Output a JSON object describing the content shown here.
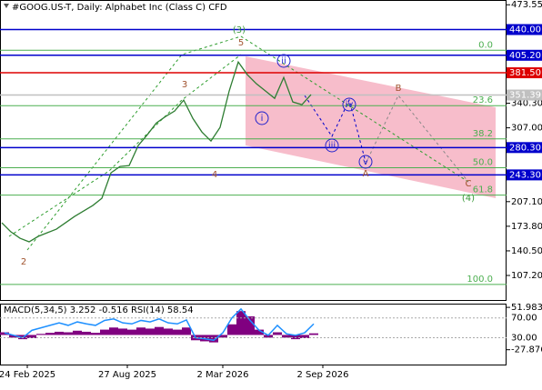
{
  "chart_data": {
    "type": "line",
    "title": "#GOOG.US-T, Daily:  Alphabet Inc (Class C) CFD",
    "x_labels": [
      "24 Feb 2025",
      "27 Aug 2025",
      "2 Mar 2026",
      "2 Sep 2026"
    ],
    "series": [
      {
        "name": "GOOG.US-T",
        "color": "#2e7d32",
        "values": [
          178.5,
          166.2,
          157.6,
          152.7,
          160.1,
          165,
          169.9,
          178.5,
          187.1,
          194.5,
          201.9,
          211.7,
          246.1,
          254.7,
          255.9,
          283,
          297.7,
          313.7,
          322.3,
          329.7,
          344.5,
          319.9,
          301.4,
          289.1,
          307.6,
          356.8,
          396.1,
          378.9,
          366.6,
          356.8,
          346.9,
          375.2,
          342,
          338.3,
          351.9
        ]
      }
    ],
    "ylim": [
      74,
      480
    ],
    "yticks": [
      473.55,
      {
        "value": 340.3,
        "label": "340.30"
      },
      {
        "value": 307,
        "label": "307.00"
      },
      {
        "value": 207.1,
        "label": "207.10"
      },
      {
        "value": 173.8,
        "label": "173.80"
      },
      {
        "value": 140.5,
        "label": "140.50"
      },
      {
        "value": 107.2,
        "label": "107.20"
      }
    ],
    "levels": [
      {
        "value": 440,
        "label": "440.00",
        "color": "#0000cc"
      },
      {
        "value": 405.2,
        "label": "405.20",
        "color": "#0000cc"
      },
      {
        "value": 381.5,
        "label": "381.50",
        "color": "#dd0000"
      },
      {
        "value": 351.39,
        "label": "351.39",
        "color": "#c0c0c0"
      },
      {
        "value": 280.3,
        "label": "280.30",
        "color": "#0000cc"
      },
      {
        "value": 243.3,
        "label": "243.30",
        "color": "#0000cc"
      }
    ],
    "fib_levels": [
      {
        "value": 412,
        "label": "0.0"
      },
      {
        "value": 337,
        "label": "23.6"
      },
      {
        "value": 292,
        "label": "38.2"
      },
      {
        "value": 253,
        "label": "50.0"
      },
      {
        "value": 216,
        "label": "61.8"
      },
      {
        "value": 95,
        "label": "100.0"
      }
    ],
    "fib_color": "#4caf50",
    "annotations": [
      "(3)",
      "5",
      "3",
      "4",
      "2",
      "ii",
      "i",
      "iii",
      "iv",
      "v",
      "A",
      "B",
      "C",
      "(4)"
    ],
    "indicator": {
      "title": "MACD(5,34,5) 3.252 -0.516 RSI(14) 58.54",
      "macd_color": "#800080",
      "macd_values": [
        5,
        -5,
        -8,
        -6,
        2,
        4,
        6,
        5,
        8,
        6,
        4,
        10,
        14,
        12,
        10,
        14,
        12,
        15,
        12,
        10,
        14,
        -10,
        -12,
        -14,
        -5,
        20,
        45,
        35,
        10,
        -5,
        5,
        -5,
        -8,
        -6,
        3
      ],
      "macd_ylim": [
        -55.8,
        57.3
      ],
      "macd_ticks": [
        51.983,
        -27.876
      ],
      "rsi_color": "#1e90ff",
      "rsi_values": [
        40,
        35,
        30,
        45,
        50,
        55,
        60,
        55,
        62,
        58,
        55,
        65,
        68,
        60,
        58,
        65,
        62,
        68,
        60,
        58,
        66,
        30,
        28,
        25,
        40,
        70,
        88,
        65,
        45,
        35,
        55,
        38,
        35,
        40,
        58
      ],
      "rsi_ylim": [
        -24,
        97
      ],
      "rsi_ticks": [
        {
          "value": 70,
          "label": "70.00"
        },
        {
          "value": 30,
          "label": "30.00"
        }
      ]
    }
  }
}
